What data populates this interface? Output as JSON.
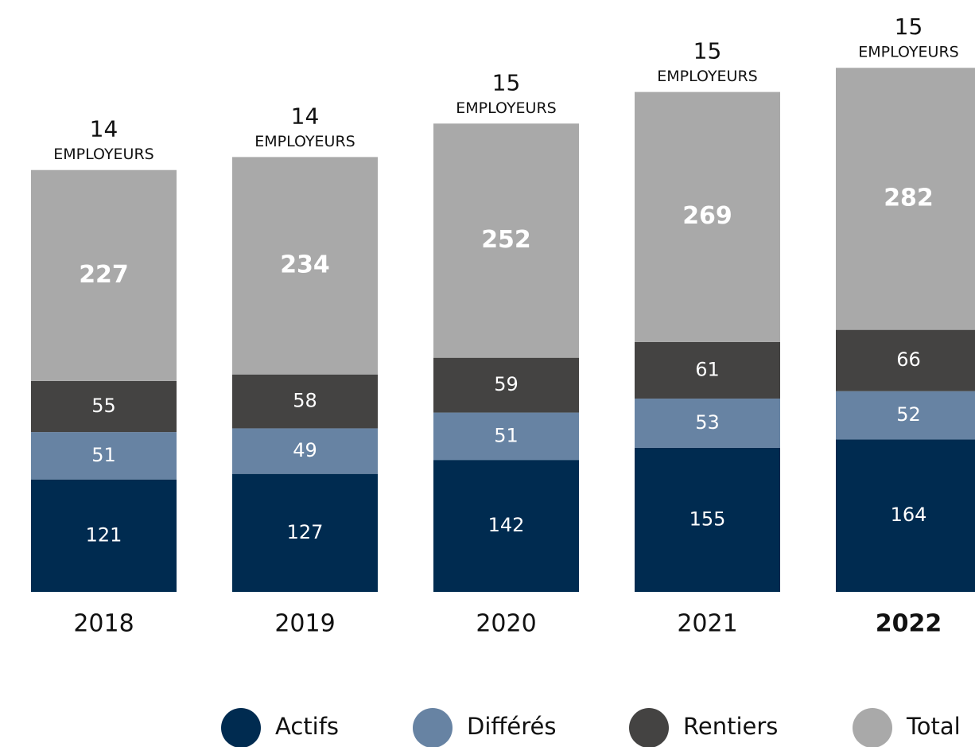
{
  "chart_data": {
    "type": "stacked_bar",
    "categories": [
      "2018",
      "2019",
      "2020",
      "2021",
      "2022"
    ],
    "series": [
      {
        "name": "Actifs",
        "color": "#002b50",
        "values": [
          121,
          127,
          142,
          155,
          164
        ]
      },
      {
        "name": "Différés",
        "color": "#6783a3",
        "values": [
          51,
          49,
          51,
          53,
          52
        ]
      },
      {
        "name": "Rentiers",
        "color": "#444342",
        "values": [
          55,
          58,
          59,
          61,
          66
        ]
      },
      {
        "name": "Total",
        "color": "#a9a9a9",
        "values": [
          227,
          234,
          252,
          269,
          282
        ]
      }
    ],
    "employers": [
      14,
      14,
      15,
      15,
      15
    ],
    "employers_label": "EMPLOYEURS",
    "emphasized_category_index": 4
  }
}
